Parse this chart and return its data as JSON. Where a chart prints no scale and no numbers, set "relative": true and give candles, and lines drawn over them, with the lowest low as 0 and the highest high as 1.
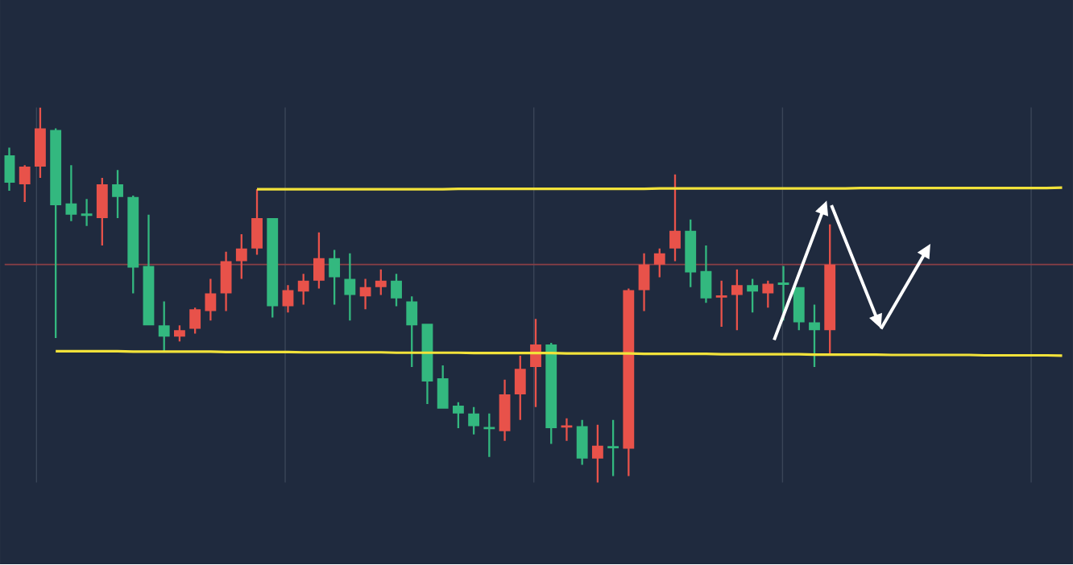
{
  "chart_data": {
    "type": "candlestick",
    "relative": true,
    "grid": "x",
    "categories": [
      null,
      null,
      null,
      null,
      null,
      null,
      null,
      null,
      null,
      null,
      null,
      null,
      null,
      null,
      null,
      null,
      null,
      null,
      null,
      null,
      null,
      null,
      null,
      null,
      null,
      null,
      null,
      null,
      null,
      null,
      null,
      null,
      null,
      null,
      null,
      null,
      null,
      null,
      null,
      null,
      null,
      null,
      null,
      null,
      null,
      null,
      null,
      null,
      null,
      null,
      null,
      null,
      null,
      null,
      null,
      null,
      null,
      null,
      null,
      null,
      null,
      null,
      null,
      null,
      null,
      null,
      null,
      null,
      null
    ],
    "ohlc": [
      [
        0.872,
        0.893,
        0.778,
        0.799
      ],
      [
        0.795,
        0.846,
        0.748,
        0.842
      ],
      [
        0.842,
        1,
        0.812,
        0.944
      ],
      [
        0.94,
        0.944,
        0.385,
        0.739
      ],
      [
        0.744,
        0.846,
        0.697,
        0.714
      ],
      [
        0.716,
        0.756,
        0.684,
        0.712
      ],
      [
        0.705,
        0.812,
        0.632,
        0.795
      ],
      [
        0.795,
        0.833,
        0.705,
        0.761
      ],
      [
        0.761,
        0.765,
        0.504,
        0.573
      ],
      [
        0.577,
        0.714,
        0.419,
        0.419
      ],
      [
        0.419,
        0.483,
        0.35,
        0.389
      ],
      [
        0.389,
        0.419,
        0.376,
        0.406
      ],
      [
        0.41,
        0.466,
        0.397,
        0.462
      ],
      [
        0.457,
        0.543,
        0.432,
        0.504
      ],
      [
        0.504,
        0.615,
        0.457,
        0.59
      ],
      [
        0.59,
        0.662,
        0.543,
        0.624
      ],
      [
        0.624,
        0.782,
        0.607,
        0.705
      ],
      [
        0.705,
        0.705,
        0.44,
        0.47
      ],
      [
        0.47,
        0.526,
        0.453,
        0.513
      ],
      [
        0.509,
        0.556,
        0.474,
        0.538
      ],
      [
        0.538,
        0.667,
        0.517,
        0.598
      ],
      [
        0.598,
        0.62,
        0.474,
        0.547
      ],
      [
        0.543,
        0.611,
        0.432,
        0.5
      ],
      [
        0.496,
        0.543,
        0.462,
        0.521
      ],
      [
        0.521,
        0.568,
        0.5,
        0.538
      ],
      [
        0.538,
        0.556,
        0.47,
        0.491
      ],
      [
        0.483,
        0.496,
        0.308,
        0.419
      ],
      [
        0.423,
        0.423,
        0.209,
        0.269
      ],
      [
        0.278,
        0.312,
        0.197,
        0.197
      ],
      [
        0.205,
        0.214,
        0.145,
        0.184
      ],
      [
        0.184,
        0.201,
        0.128,
        0.15
      ],
      [
        0.147,
        0.184,
        0.068,
        0.143
      ],
      [
        0.137,
        0.274,
        0.111,
        0.235
      ],
      [
        0.235,
        0.338,
        0.167,
        0.303
      ],
      [
        0.308,
        0.436,
        0.201,
        0.368
      ],
      [
        0.368,
        0.372,
        0.103,
        0.145
      ],
      [
        0.147,
        0.171,
        0.111,
        0.152
      ],
      [
        0.15,
        0.167,
        0.047,
        0.064
      ],
      [
        0.064,
        0.154,
        0,
        0.098
      ],
      [
        0.096,
        0.167,
        0.017,
        0.092
      ],
      [
        0.09,
        0.517,
        0.017,
        0.513
      ],
      [
        0.513,
        0.611,
        0.457,
        0.581
      ],
      [
        0.581,
        0.624,
        0.547,
        0.611
      ],
      [
        0.624,
        0.821,
        0.59,
        0.671
      ],
      [
        0.671,
        0.701,
        0.521,
        0.56
      ],
      [
        0.564,
        0.632,
        0.479,
        0.491
      ],
      [
        0.494,
        0.538,
        0.415,
        0.498
      ],
      [
        0.5,
        0.568,
        0.406,
        0.526
      ],
      [
        0.526,
        0.543,
        0.453,
        0.509
      ],
      [
        0.504,
        0.538,
        0.466,
        0.53
      ],
      [
        0.532,
        0.577,
        0.432,
        0.528
      ],
      [
        0.521,
        0.521,
        0.406,
        0.427
      ],
      [
        0.427,
        0.474,
        0.308,
        0.406
      ],
      [
        0.406,
        0.688,
        0.338,
        0.581
      ],
      null,
      null,
      null,
      null,
      null,
      null,
      null,
      null,
      null,
      null,
      null,
      null,
      null,
      null,
      null
    ],
    "colors": [
      "#33b87f",
      "#e8524a",
      "#e8524a",
      "#33b87f",
      "#33b87f",
      "#33b87f",
      "#e8524a",
      "#33b87f",
      "#33b87f",
      "#33b87f",
      "#33b87f",
      "#e8524a",
      "#e8524a",
      "#e8524a",
      "#e8524a",
      "#e8524a",
      "#e8524a",
      "#33b87f",
      "#e8524a",
      "#e8524a",
      "#e8524a",
      "#33b87f",
      "#33b87f",
      "#e8524a",
      "#e8524a",
      "#33b87f",
      "#33b87f",
      "#33b87f",
      "#33b87f",
      "#33b87f",
      "#33b87f",
      "#33b87f",
      "#e8524a",
      "#e8524a",
      "#e8524a",
      "#33b87f",
      "#e8524a",
      "#33b87f",
      "#e8524a",
      "#33b87f",
      "#e8524a",
      "#e8524a",
      "#e8524a",
      "#e8524a",
      "#33b87f",
      "#33b87f",
      "#e8524a",
      "#e8524a",
      "#33b87f",
      "#e8524a",
      "#33b87f",
      "#33b87f",
      "#33b87f",
      "#e8524a",
      null,
      null,
      null,
      null,
      null,
      null,
      null,
      null,
      null,
      null,
      null,
      null,
      null,
      null,
      null
    ],
    "series": [
      {
        "type": "line",
        "color": "#f2e23a",
        "values": [
          null,
          null,
          null,
          null,
          null,
          null,
          null,
          null,
          null,
          null,
          null,
          null,
          null,
          null,
          null,
          null,
          0.782,
          0.782,
          0.782,
          0.782,
          0.782,
          0.782,
          0.782,
          0.782,
          0.782,
          0.782,
          0.782,
          0.782,
          0.782,
          0.783,
          0.783,
          0.783,
          0.783,
          0.783,
          0.783,
          0.783,
          0.783,
          0.783,
          0.783,
          0.783,
          0.783,
          0.783,
          0.784,
          0.784,
          0.784,
          0.784,
          0.784,
          0.784,
          0.784,
          0.784,
          0.784,
          0.784,
          0.784,
          0.784,
          0.784,
          0.785,
          0.785,
          0.785,
          0.785,
          0.785,
          0.785,
          0.785,
          0.785,
          0.785,
          0.785,
          0.785,
          0.785,
          0.785,
          0.786
        ]
      },
      {
        "type": "line",
        "color": "#f2e23a",
        "values": [
          null,
          null,
          null,
          0.35,
          0.35,
          0.35,
          0.35,
          0.35,
          0.349,
          0.349,
          0.349,
          0.349,
          0.349,
          0.349,
          0.348,
          0.348,
          0.348,
          0.348,
          0.348,
          0.347,
          0.347,
          0.347,
          0.347,
          0.347,
          0.347,
          0.346,
          0.346,
          0.346,
          0.346,
          0.346,
          0.345,
          0.345,
          0.345,
          0.345,
          0.345,
          0.345,
          0.344,
          0.344,
          0.344,
          0.344,
          0.344,
          0.343,
          0.343,
          0.343,
          0.343,
          0.343,
          0.342,
          0.342,
          0.342,
          0.342,
          0.342,
          0.342,
          0.341,
          0.341,
          0.341,
          0.341,
          0.341,
          0.34,
          0.34,
          0.34,
          0.34,
          0.34,
          0.34,
          0.339,
          0.339,
          0.339,
          0.339,
          0.339,
          0.338
        ]
      }
    ],
    "ref_lines": [
      {
        "axis": "y",
        "value": 0.581,
        "color": "#8a3f46"
      }
    ]
  }
}
